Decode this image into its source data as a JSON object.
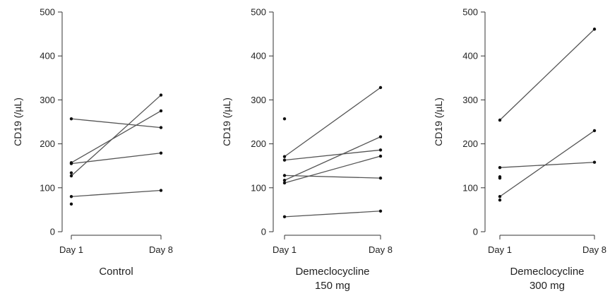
{
  "chart_data": [
    {
      "type": "line",
      "xlabel_lines": [
        "Control"
      ],
      "ylabel": "CD19 (/µL)",
      "categories": [
        "Day 1",
        "Day 8"
      ],
      "yticks": [
        0,
        100,
        200,
        300,
        400,
        500
      ],
      "ylim": [
        0,
        500
      ],
      "pairs": [
        [
          257,
          237
        ],
        [
          155,
          179
        ],
        [
          157,
          275
        ],
        [
          127,
          311
        ],
        [
          80,
          94
        ]
      ],
      "unpaired_day1": [
        134,
        63
      ],
      "unpaired_day8": []
    },
    {
      "type": "line",
      "xlabel_lines": [
        "Demeclocycline",
        "150 mg"
      ],
      "ylabel": "CD19 (/µL)",
      "categories": [
        "Day 1",
        "Day 8"
      ],
      "yticks": [
        0,
        100,
        200,
        300,
        400,
        500
      ],
      "ylim": [
        0,
        500
      ],
      "pairs": [
        [
          171,
          328
        ],
        [
          163,
          186
        ],
        [
          128,
          122
        ],
        [
          117,
          216
        ],
        [
          111,
          172
        ],
        [
          34,
          47
        ]
      ],
      "unpaired_day1": [
        257
      ],
      "unpaired_day8": []
    },
    {
      "type": "line",
      "xlabel_lines": [
        "Demeclocycline",
        "300 mg"
      ],
      "ylabel": "CD19 (/µL)",
      "categories": [
        "Day 1",
        "Day 8"
      ],
      "yticks": [
        0,
        100,
        200,
        300,
        400,
        500
      ],
      "ylim": [
        0,
        500
      ],
      "pairs": [
        [
          254,
          461
        ],
        [
          146,
          158
        ],
        [
          80,
          230
        ]
      ],
      "unpaired_day1": [
        125,
        122,
        72
      ],
      "unpaired_day8": []
    }
  ]
}
